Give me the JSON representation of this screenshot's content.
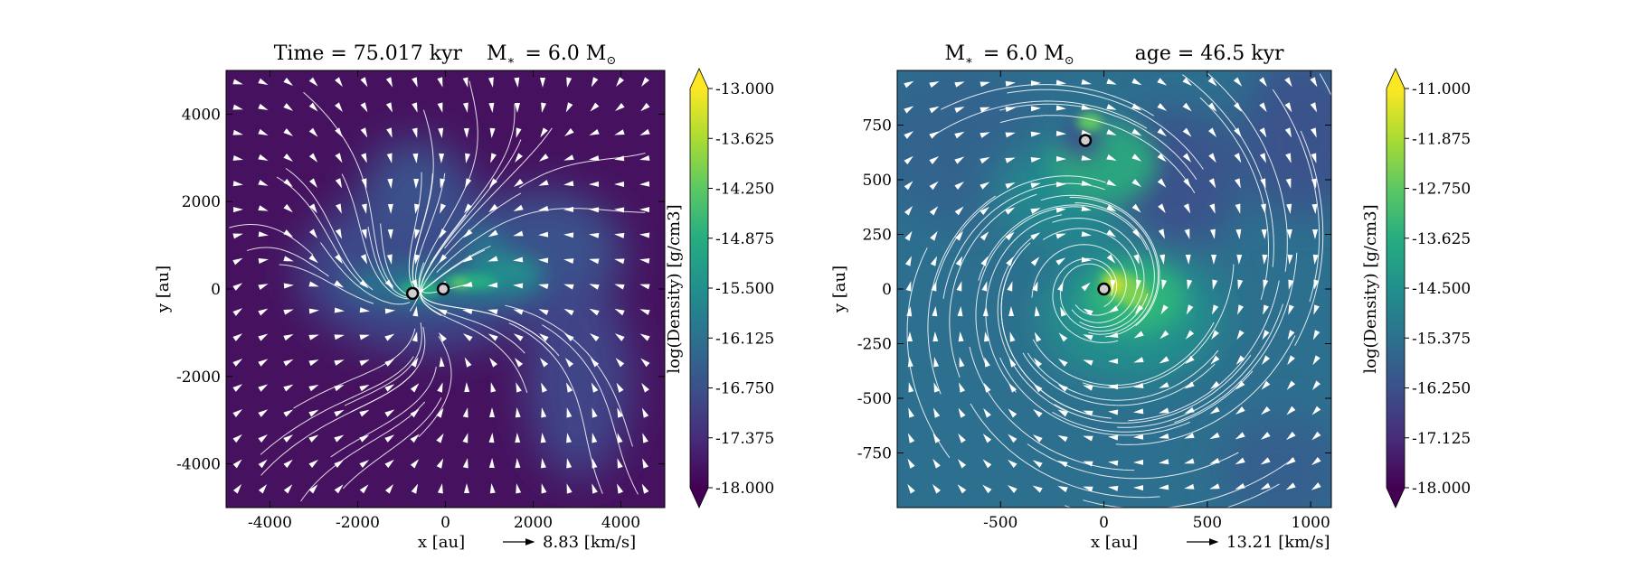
{
  "colors": {
    "viridis": [
      "#440154",
      "#472c7a",
      "#3b518b",
      "#2c718e",
      "#21908d",
      "#27ad81",
      "#5cc863",
      "#aadc32",
      "#fde725"
    ],
    "streamline": "#ffffff",
    "star_fill": "#cfcfcf",
    "star_edge": "#000000"
  },
  "chart_data": [
    {
      "type": "heatmap",
      "title": "Time = 75.017 kyr    M$_*$ = 6.0 M$_\\odot$",
      "title_parts": {
        "time": "Time = 75.017 kyr",
        "mass": "M",
        "mass_sub": "∗",
        "mass_val": "= 6.0 M",
        "mass_unit_sub": "⊙"
      },
      "xlabel": "x [au]",
      "ylabel": "y [au]",
      "xlim": [
        -5000,
        5000
      ],
      "ylim": [
        -5000,
        5000
      ],
      "xticks": [
        -4000,
        -2000,
        0,
        2000,
        4000
      ],
      "yticks": [
        -4000,
        -2000,
        0,
        2000,
        4000
      ],
      "xtick_labels": [
        "-4000",
        "-2000",
        "0",
        "2000",
        "4000"
      ],
      "ytick_labels": [
        "-4000",
        "-2000",
        "0",
        "2000",
        "4000"
      ],
      "velocity_key": "8.83 [km/s]",
      "colorbar": {
        "label": "log(Density) [g/cm3]",
        "range": [
          -18.0,
          -13.0
        ],
        "ticks": [
          "-13.000",
          "-13.625",
          "-14.250",
          "-14.875",
          "-15.500",
          "-16.125",
          "-16.750",
          "-17.375",
          "-18.000"
        ],
        "extend": "both"
      },
      "stars": [
        {
          "x": -750,
          "y": -100
        },
        {
          "x": -50,
          "y": 0
        }
      ]
    },
    {
      "type": "heatmap",
      "title": "M$_*$ = 6.0 M$_\\odot$        age = 46.5 kyr",
      "title_parts": {
        "mass": "M",
        "mass_sub": "∗",
        "mass_val": "= 6.0 M",
        "mass_unit_sub": "⊙",
        "age": "age = 46.5 kyr"
      },
      "xlabel": "x [au]",
      "ylabel": "y [au]",
      "xlim": [
        -1000,
        1100
      ],
      "ylim": [
        -1000,
        1000
      ],
      "xticks": [
        -500,
        0,
        500,
        1000
      ],
      "yticks": [
        -750,
        -500,
        -250,
        0,
        250,
        500,
        750
      ],
      "xtick_labels": [
        "-500",
        "0",
        "500",
        "1000"
      ],
      "ytick_labels": [
        "-750",
        "-500",
        "-250",
        "0",
        "250",
        "500",
        "750"
      ],
      "velocity_key": "13.21 [km/s]",
      "colorbar": {
        "label": "log(Density) [g/cm3]",
        "range": [
          -18.0,
          -11.0
        ],
        "ticks": [
          "-11.000",
          "-11.875",
          "-12.750",
          "-13.625",
          "-14.500",
          "-15.375",
          "-16.250",
          "-17.125",
          "-18.000"
        ],
        "extend": "both"
      },
      "stars": [
        {
          "x": -90,
          "y": 680
        },
        {
          "x": 0,
          "y": 0
        }
      ]
    }
  ]
}
